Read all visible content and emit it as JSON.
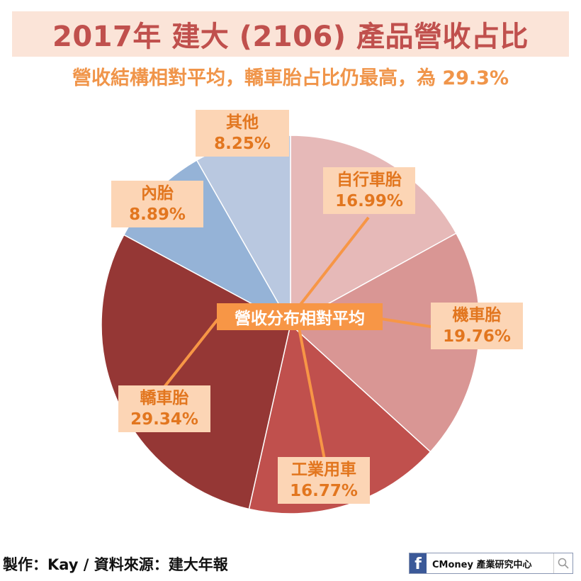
{
  "header": {
    "title": "2017年 建大 (2106) 產品營收占比",
    "subtitle": "營收結構相對平均，轎車胎占比仍最高，為 29.3%"
  },
  "center_note": "營收分布相對平均",
  "colors": {
    "title": "#c0504d",
    "title_band": "#fbe4d8",
    "subtitle": "#f0954a",
    "label_bg": "#fcd5b5",
    "label_text": "#e2761f",
    "leader_line": "#f79646",
    "center_bg": "#f79646"
  },
  "chart_data": {
    "type": "pie",
    "title": "2017年 建大 (2106) 產品營收占比",
    "start_angle_deg": 0,
    "direction": "clockwise",
    "categories": [
      "自行車胎",
      "機車胎",
      "工業用車",
      "轎車胎",
      "內胎",
      "其他"
    ],
    "values": [
      16.99,
      19.76,
      16.77,
      29.34,
      8.89,
      8.25
    ],
    "value_labels": [
      "16.99%",
      "19.76%",
      "16.77%",
      "29.34%",
      "8.89%",
      "8.25%"
    ],
    "slice_colors": [
      "#e6b9b8",
      "#d99694",
      "#c0504d",
      "#953735",
      "#95b3d7",
      "#b9c8e0"
    ],
    "annotation": "營收分布相對平均",
    "legend": "none (data labels on slices)"
  },
  "labels": [
    {
      "name": "自行車胎",
      "pct": "16.99%"
    },
    {
      "name": "機車胎",
      "pct": "19.76%"
    },
    {
      "name": "工業用車",
      "pct": "16.77%"
    },
    {
      "name": "轎車胎",
      "pct": "29.34%"
    },
    {
      "name": "內胎",
      "pct": "8.89%"
    },
    {
      "name": "其他",
      "pct": "8.25%"
    }
  ],
  "footer": {
    "credit": "製作：Kay / 資料來源：建大年報",
    "badge_logo": "f",
    "badge_text": "CMoney 產業研究中心",
    "badge_icon": "search-icon"
  }
}
